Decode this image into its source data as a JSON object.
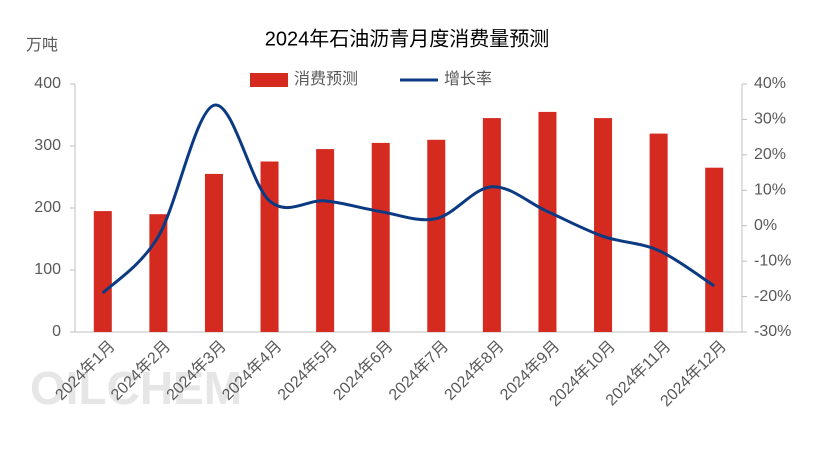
{
  "chart_data": {
    "type": "bar_line",
    "title": "2024年石油沥青月度消费量预测",
    "y_unit": "万吨",
    "watermark": "OILCHEM",
    "categories": [
      "2024年1月",
      "2024年2月",
      "2024年3月",
      "2024年4月",
      "2024年5月",
      "2024年6月",
      "2024年7月",
      "2024年8月",
      "2024年9月",
      "2024年10月",
      "2024年11月",
      "2024年12月"
    ],
    "series": [
      {
        "name": "消费预测",
        "type": "bar",
        "color": "#d42a20",
        "values": [
          195,
          190,
          255,
          275,
          295,
          305,
          310,
          345,
          355,
          345,
          320,
          265
        ]
      },
      {
        "name": "增长率",
        "type": "line",
        "axis": "y2",
        "color": "#0b3a82",
        "values": [
          -19,
          -3,
          34,
          7,
          7,
          4,
          2,
          11,
          4,
          -3,
          -7,
          -17
        ]
      }
    ],
    "ylim": [
      0,
      400
    ],
    "yticks": [
      0,
      100,
      200,
      300,
      400
    ],
    "y2lim": [
      -30,
      40
    ],
    "y2ticks": [
      {
        "value": -30,
        "label": "-30%"
      },
      {
        "value": -20,
        "label": "-20%"
      },
      {
        "value": -10,
        "label": "-10%"
      },
      {
        "value": 0,
        "label": "0%"
      },
      {
        "value": 10,
        "label": "10%"
      },
      {
        "value": 20,
        "label": "20%"
      },
      {
        "value": 30,
        "label": "30%"
      },
      {
        "value": 40,
        "label": "40%"
      }
    ],
    "grid": false
  }
}
